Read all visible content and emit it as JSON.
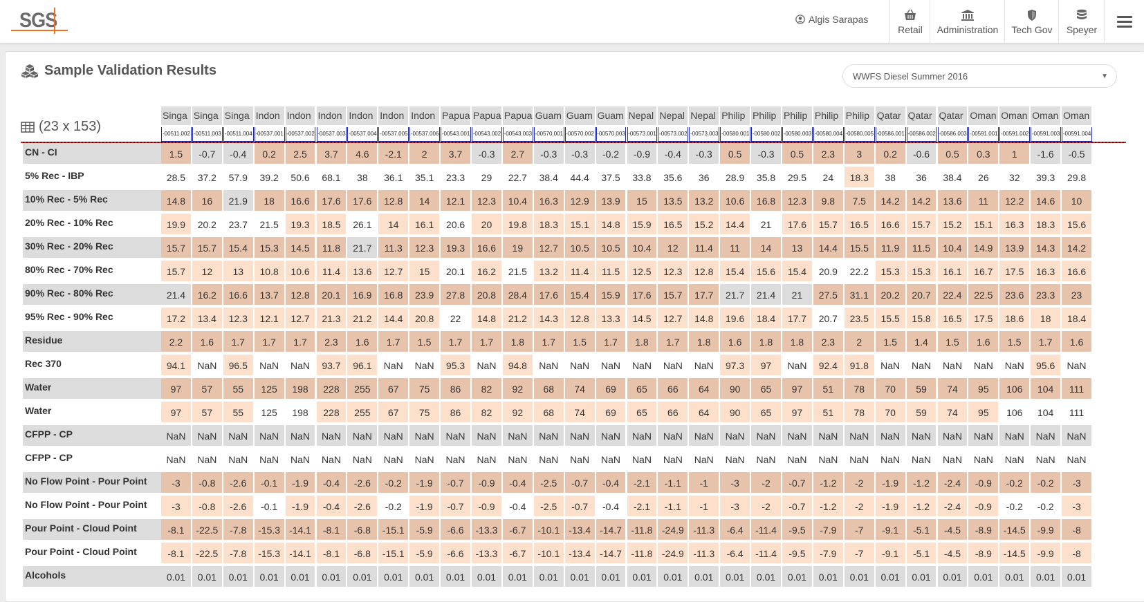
{
  "header": {
    "logo_text": "SGS",
    "user_name": "Algis Sarapas",
    "nav": [
      {
        "label": "Retail",
        "icon": "basket-icon"
      },
      {
        "label": "Administration",
        "icon": "bank-icon"
      },
      {
        "label": "Tech Gov",
        "icon": "shield-icon"
      },
      {
        "label": "Speyer",
        "icon": "database-icon"
      }
    ]
  },
  "page": {
    "title": "Sample Validation Results",
    "dataset_select": "WWFS Diesel Summer 2016",
    "dimensions": "(23 x 153)"
  },
  "colors": {
    "dark": "#e7c3ac",
    "light": "#fde0cc",
    "white": "#ffffff",
    "grey": "#dcdcdc",
    "accent": "#f37021"
  },
  "table": {
    "columns": [
      {
        "name": "Singa",
        "id": "-00511.002"
      },
      {
        "name": "Singa",
        "id": "-00511.003"
      },
      {
        "name": "Singa",
        "id": "-00511.004"
      },
      {
        "name": "Indon",
        "id": "-00537.001"
      },
      {
        "name": "Indon",
        "id": "-00537.002"
      },
      {
        "name": "Indon",
        "id": "-00537.003"
      },
      {
        "name": "Indon",
        "id": "-00537.004"
      },
      {
        "name": "Indon",
        "id": "-00537.005"
      },
      {
        "name": "Indon",
        "id": "-00537.006"
      },
      {
        "name": "Papua",
        "id": "-00543.001"
      },
      {
        "name": "Papua",
        "id": "-00543.002"
      },
      {
        "name": "Papua",
        "id": "-00543.003"
      },
      {
        "name": "Guam",
        "id": "-00570.001"
      },
      {
        "name": "Guam",
        "id": "-00570.002"
      },
      {
        "name": "Guam",
        "id": "-00570.003"
      },
      {
        "name": "Nepal",
        "id": "-00573.001"
      },
      {
        "name": "Nepal",
        "id": "-00573.002"
      },
      {
        "name": "Nepal",
        "id": "-00573.003"
      },
      {
        "name": "Philip",
        "id": "-00580.001"
      },
      {
        "name": "Philip",
        "id": "-00580.002"
      },
      {
        "name": "Philip",
        "id": "-00580.003"
      },
      {
        "name": "Philip",
        "id": "-00580.004"
      },
      {
        "name": "Philip",
        "id": "-00580.005"
      },
      {
        "name": "Qatar",
        "id": "-00586.001"
      },
      {
        "name": "Qatar",
        "id": "-00586.002"
      },
      {
        "name": "Qatar",
        "id": "-00586.003"
      },
      {
        "name": "Oman",
        "id": "-00591.001"
      },
      {
        "name": "Oman",
        "id": "-00591.002"
      },
      {
        "name": "Oman",
        "id": "-00591.003"
      },
      {
        "name": "Oman",
        "id": "-00591.004"
      }
    ],
    "rows": [
      {
        "label": "CN - CI",
        "values": [
          "1.5",
          "-0.7",
          "-0.4",
          "0.2",
          "2.5",
          "3.7",
          "4.6",
          "-2.1",
          "2",
          "3.7",
          "-0.3",
          "2.7",
          "-0.3",
          "-0.3",
          "-0.2",
          "-0.9",
          "-0.4",
          "-0.3",
          "0.5",
          "-0.3",
          "0.5",
          "2.3",
          "3",
          "0.2",
          "-0.6",
          "0.5",
          "0.3",
          "1",
          "-1.6",
          "-0.5"
        ],
        "shades": "DGGDDDDDDDGDGGGGGGDGDDDDGDDDGG"
      },
      {
        "label": "5% Rec - IBP",
        "values": [
          "28.5",
          "37.2",
          "57.9",
          "39.2",
          "50.6",
          "68.1",
          "38",
          "36.1",
          "35.1",
          "23.3",
          "29",
          "22.7",
          "38.4",
          "44.4",
          "37.5",
          "33.8",
          "35.6",
          "36",
          "28.9",
          "35.8",
          "29.5",
          "24",
          "18.3",
          "38",
          "36",
          "38.4",
          "26",
          "32",
          "39.3",
          "29.8"
        ],
        "shades": "WWWWWWWWWWWWWWWWWWWWWWLWWWWWWW"
      },
      {
        "label": "10% Rec - 5% Rec",
        "values": [
          "14.8",
          "16",
          "21.9",
          "18",
          "16.6",
          "17.6",
          "17.6",
          "12.8",
          "14",
          "12.1",
          "12.3",
          "10.4",
          "16.3",
          "12.9",
          "13.9",
          "15",
          "13.5",
          "13.2",
          "10.6",
          "16.8",
          "12.3",
          "9.8",
          "7.5",
          "14.2",
          "14.2",
          "13.6",
          "11",
          "12.2",
          "14.6",
          "10"
        ],
        "shades": "DDGDDDDDDDDDDDDDDDDDDDDDDDDDDD"
      },
      {
        "label": "20% Rec - 10% Rec",
        "values": [
          "19.9",
          "20.2",
          "23.7",
          "21.5",
          "19.3",
          "18.5",
          "26.1",
          "14",
          "16.1",
          "20.6",
          "20",
          "19.8",
          "18.3",
          "15.1",
          "14.8",
          "15.9",
          "16.5",
          "15.2",
          "14.4",
          "21",
          "17.6",
          "15.7",
          "16.5",
          "16.6",
          "15.7",
          "15.2",
          "15.1",
          "16.3",
          "18.3",
          "15.6"
        ],
        "shades": "LWWWLLWLLWLLLLLLLLLWLLLLLLLLLL"
      },
      {
        "label": "30% Rec - 20% Rec",
        "values": [
          "15.7",
          "15.7",
          "15.4",
          "15.3",
          "14.5",
          "11.8",
          "21.7",
          "11.3",
          "12.3",
          "19.3",
          "16.6",
          "19",
          "12.7",
          "10.5",
          "10.5",
          "10.4",
          "12",
          "11.4",
          "11",
          "14",
          "13",
          "14.4",
          "15.5",
          "11.9",
          "11.5",
          "10.4",
          "14.9",
          "13.9",
          "14.3",
          "14.2"
        ],
        "shades": "DDDDDDGDDDDDDDDDDDDDDDDDDDDDDD"
      },
      {
        "label": "80% Rec - 70% Rec",
        "values": [
          "15.7",
          "12",
          "13",
          "10.8",
          "10.6",
          "11.4",
          "13.6",
          "12.7",
          "15",
          "20.1",
          "16.2",
          "21.5",
          "13.2",
          "11.4",
          "11.5",
          "12.5",
          "12.3",
          "12.8",
          "15.4",
          "15.6",
          "15.4",
          "20.9",
          "22.2",
          "15.3",
          "15.3",
          "16.1",
          "16.7",
          "17.5",
          "16.3",
          "16.6"
        ],
        "shades": "LLLLLLLLLWLWLLLLLLLLLWWLLLLLLL"
      },
      {
        "label": "90% Rec - 80% Rec",
        "values": [
          "21.4",
          "16.2",
          "16.6",
          "13.7",
          "12.8",
          "20.1",
          "16.9",
          "16.8",
          "23.9",
          "27.8",
          "20.8",
          "28.4",
          "17.6",
          "15.4",
          "15.9",
          "17.6",
          "15.7",
          "17.7",
          "21.7",
          "21.4",
          "21",
          "27.5",
          "31.1",
          "20.2",
          "20.7",
          "22.4",
          "22.5",
          "23.6",
          "23.3",
          "23"
        ],
        "shades": "GDDDDDDDDDDDDDDDDDGGGDDDDDDDDD"
      },
      {
        "label": "95% Rec - 90% Rec",
        "values": [
          "17.2",
          "13.4",
          "12.3",
          "12.1",
          "12.7",
          "21.3",
          "21.2",
          "14.4",
          "20.8",
          "22",
          "14.8",
          "21.2",
          "14.3",
          "12.8",
          "13.3",
          "14.5",
          "12.7",
          "14.8",
          "19.6",
          "18.4",
          "17.7",
          "20.7",
          "23.5",
          "15.5",
          "15.8",
          "16.5",
          "17.5",
          "18.6",
          "18",
          "18.4"
        ],
        "shades": "LLLLLLLLLWLLLLLLLLLLLWLLLLLLLL"
      },
      {
        "label": "Residue",
        "values": [
          "2.2",
          "1.6",
          "1.7",
          "1.7",
          "1.7",
          "2.3",
          "1.6",
          "1.7",
          "1.5",
          "1.7",
          "1.7",
          "1.8",
          "1.7",
          "1.5",
          "1.7",
          "1.8",
          "1.7",
          "1.8",
          "1.6",
          "1.8",
          "1.8",
          "2.3",
          "2",
          "1.5",
          "1.4",
          "1.5",
          "1.6",
          "1.5",
          "1.7",
          "1.6"
        ],
        "shades": "DDDDDDDDDDDDDDDDDDDDDDDDDDDDDD"
      },
      {
        "label": "Rec 370",
        "values": [
          "94.1",
          "NaN",
          "96.5",
          "NaN",
          "NaN",
          "93.7",
          "96.1",
          "NaN",
          "NaN",
          "95.3",
          "NaN",
          "94.8",
          "NaN",
          "NaN",
          "NaN",
          "NaN",
          "NaN",
          "NaN",
          "97.3",
          "97",
          "NaN",
          "92.4",
          "91.8",
          "NaN",
          "NaN",
          "NaN",
          "NaN",
          "NaN",
          "95.6",
          "NaN"
        ],
        "shades": "LWLWWLLWWLWLWWWWWWLLWLLWWWWWLW"
      },
      {
        "label": "Water",
        "values": [
          "97",
          "57",
          "55",
          "125",
          "198",
          "228",
          "255",
          "67",
          "75",
          "86",
          "82",
          "92",
          "68",
          "74",
          "69",
          "65",
          "66",
          "64",
          "90",
          "65",
          "97",
          "51",
          "78",
          "70",
          "59",
          "74",
          "95",
          "106",
          "104",
          "111"
        ],
        "shades": "DDDDDDDDDDDDDDDDDDDDDDDDDDDDDD"
      },
      {
        "label": "Water",
        "values": [
          "97",
          "57",
          "55",
          "125",
          "198",
          "228",
          "255",
          "67",
          "75",
          "86",
          "82",
          "92",
          "68",
          "74",
          "69",
          "65",
          "66",
          "64",
          "90",
          "65",
          "97",
          "51",
          "78",
          "70",
          "59",
          "74",
          "95",
          "106",
          "104",
          "111"
        ],
        "shades": "LLLWWLLLLLLLLLLLLLLLLLLLLLLWWW"
      },
      {
        "label": "CFPP - CP",
        "values": [
          "NaN",
          "NaN",
          "NaN",
          "NaN",
          "NaN",
          "NaN",
          "NaN",
          "NaN",
          "NaN",
          "NaN",
          "NaN",
          "NaN",
          "NaN",
          "NaN",
          "NaN",
          "NaN",
          "NaN",
          "NaN",
          "NaN",
          "NaN",
          "NaN",
          "NaN",
          "NaN",
          "NaN",
          "NaN",
          "NaN",
          "NaN",
          "NaN",
          "NaN",
          "NaN"
        ],
        "shades": "GGGGGGGGGGGGGGGGGGGGGGGGGGGGGG"
      },
      {
        "label": "CFPP - CP",
        "values": [
          "NaN",
          "NaN",
          "NaN",
          "NaN",
          "NaN",
          "NaN",
          "NaN",
          "NaN",
          "NaN",
          "NaN",
          "NaN",
          "NaN",
          "NaN",
          "NaN",
          "NaN",
          "NaN",
          "NaN",
          "NaN",
          "NaN",
          "NaN",
          "NaN",
          "NaN",
          "NaN",
          "NaN",
          "NaN",
          "NaN",
          "NaN",
          "NaN",
          "NaN",
          "NaN"
        ],
        "shades": "WWWWWWWWWWWWWWWWWWWWWWWWWWWWWW"
      },
      {
        "label": "No Flow Point - Pour Point",
        "values": [
          "-3",
          "-0.8",
          "-2.6",
          "-0.1",
          "-1.9",
          "-0.4",
          "-2.6",
          "-0.2",
          "-1.9",
          "-0.7",
          "-0.9",
          "-0.4",
          "-2.5",
          "-0.7",
          "-0.4",
          "-2.1",
          "-1.1",
          "-1",
          "-3",
          "-2",
          "-0.7",
          "-1.2",
          "-2",
          "-1.9",
          "-1.2",
          "-2.4",
          "-0.9",
          "-0.2",
          "-0.2",
          "-3"
        ],
        "shades": "DDDDDDDDDDDDDDDDDDDDDDDDDDDDDD"
      },
      {
        "label": "No Flow Point - Pour Point",
        "values": [
          "-3",
          "-0.8",
          "-2.6",
          "-0.1",
          "-1.9",
          "-0.4",
          "-2.6",
          "-0.2",
          "-1.9",
          "-0.7",
          "-0.9",
          "-0.4",
          "-2.5",
          "-0.7",
          "-0.4",
          "-2.1",
          "-1.1",
          "-1",
          "-3",
          "-2",
          "-0.7",
          "-1.2",
          "-2",
          "-1.9",
          "-1.2",
          "-2.4",
          "-0.9",
          "-0.2",
          "-0.2",
          "-3"
        ],
        "shades": "LLLWLLLWLLLWLLWLLLLLLLLLLLLWWL"
      },
      {
        "label": "Pour Point - Cloud Point",
        "values": [
          "-8.1",
          "-22.5",
          "-7.8",
          "-15.3",
          "-14.1",
          "-8.1",
          "-6.8",
          "-15.1",
          "-5.9",
          "-6.6",
          "-13.3",
          "-6.7",
          "-10.1",
          "-13.4",
          "-14.7",
          "-11.8",
          "-24.9",
          "-11.3",
          "-6.4",
          "-11.4",
          "-9.5",
          "-7.9",
          "-7",
          "-9.1",
          "-5.1",
          "-4.5",
          "-8.9",
          "-14.5",
          "-9.9",
          "-8"
        ],
        "shades": "DDDDDDDDDDDDDDDDDDDDDDDDDDDDDD"
      },
      {
        "label": "Pour Point - Cloud Point",
        "values": [
          "-8.1",
          "-22.5",
          "-7.8",
          "-15.3",
          "-14.1",
          "-8.1",
          "-6.8",
          "-15.1",
          "-5.9",
          "-6.6",
          "-13.3",
          "-6.7",
          "-10.1",
          "-13.4",
          "-14.7",
          "-11.8",
          "-24.9",
          "-11.3",
          "-6.4",
          "-11.4",
          "-9.5",
          "-7.9",
          "-7",
          "-9.1",
          "-5.1",
          "-4.5",
          "-8.9",
          "-14.5",
          "-9.9",
          "-8"
        ],
        "shades": "LLLLLLLLLLLLLLLLLLLLLLLLLLLLLL"
      },
      {
        "label": "Alcohols",
        "values": [
          "0.01",
          "0.01",
          "0.01",
          "0.01",
          "0.01",
          "0.01",
          "0.01",
          "0.01",
          "0.01",
          "0.01",
          "0.01",
          "0.01",
          "0.01",
          "0.01",
          "0.01",
          "0.01",
          "0.01",
          "0.01",
          "0.01",
          "0.01",
          "0.01",
          "0.01",
          "0.01",
          "0.01",
          "0.01",
          "0.01",
          "0.01",
          "0.01",
          "0.01",
          "0.01"
        ],
        "shades": "GGGGGGGGGGGGGGGGGGGGGGGGGGGGGG"
      }
    ]
  }
}
